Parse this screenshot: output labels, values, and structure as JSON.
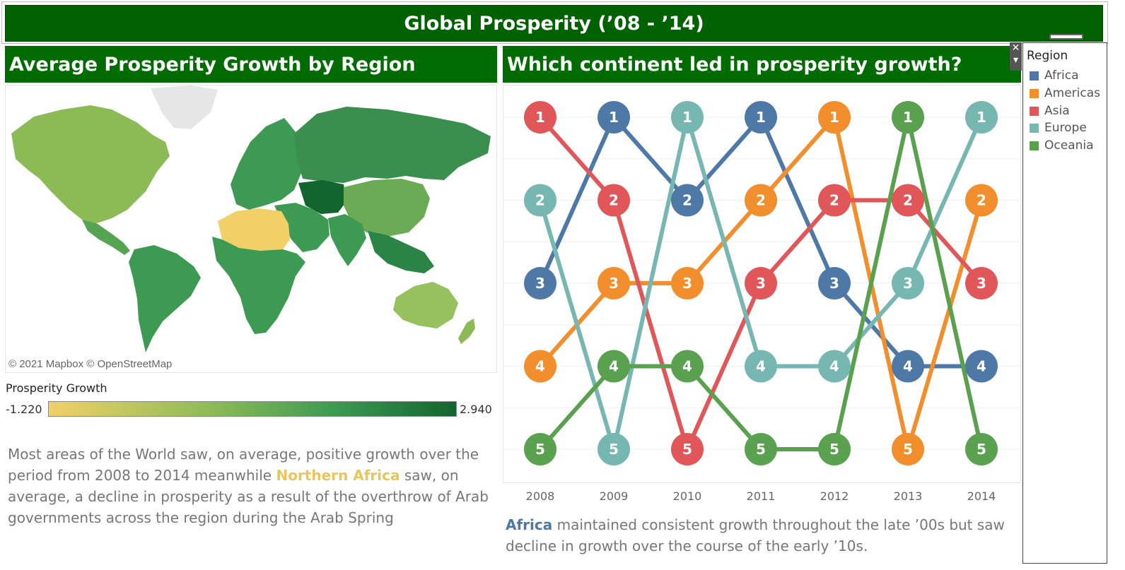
{
  "dashboard_title": "Global Prosperity (’08 - ’14)",
  "map_panel": {
    "title": "Average Prosperity Growth by Region",
    "copyright": "© 2021 Mapbox © OpenStreetMap",
    "legend_title": "Prosperity Growth",
    "legend_min": "-1.220",
    "legend_max": "2.940",
    "gradient_colors": [
      "#f2d068",
      "#8cbb56",
      "#3d9a52",
      "#12652f"
    ],
    "desc_before": "Most areas of the World saw, on average, positive growth over the period from 2008 to 2014 meanwhile ",
    "desc_highlight": "Northern Africa",
    "desc_after": " saw, on average, a decline in prosperity as a result of the overthrow of Arab governments across the region during the Arab Spring"
  },
  "chart_panel": {
    "title": "Which continent led in prosperity growth?",
    "desc_highlight": "Africa",
    "desc_after": " maintained consistent growth throughout the late ’00s but saw decline in growth over the course of the early ’10s."
  },
  "legend": {
    "title": "Region",
    "items": [
      {
        "label": "Africa",
        "color": "#4e79a7"
      },
      {
        "label": "Americas",
        "color": "#f28e2b"
      },
      {
        "label": "Asia",
        "color": "#e15759"
      },
      {
        "label": "Europe",
        "color": "#76b7b2"
      },
      {
        "label": "Oceania",
        "color": "#59a14f"
      }
    ]
  },
  "chart_data": {
    "type": "line",
    "title": "Which continent led in prosperity growth?",
    "x": [
      "2008",
      "2009",
      "2010",
      "2011",
      "2012",
      "2013",
      "2014"
    ],
    "y_axis": "rank",
    "ylim": [
      1,
      5
    ],
    "y_inverted": true,
    "grid": true,
    "legend_position": "right",
    "series": [
      {
        "name": "Africa",
        "color": "#4e79a7",
        "values": [
          3,
          1,
          2,
          1,
          3,
          4,
          4
        ]
      },
      {
        "name": "Americas",
        "color": "#f28e2b",
        "values": [
          4,
          3,
          3,
          2,
          1,
          5,
          2
        ]
      },
      {
        "name": "Asia",
        "color": "#e15759",
        "values": [
          1,
          2,
          5,
          3,
          2,
          2,
          3
        ]
      },
      {
        "name": "Europe",
        "color": "#76b7b2",
        "values": [
          2,
          5,
          1,
          4,
          4,
          3,
          1
        ]
      },
      {
        "name": "Oceania",
        "color": "#59a14f",
        "values": [
          5,
          4,
          4,
          5,
          5,
          1,
          5
        ]
      }
    ]
  },
  "map_data": {
    "region_colors": {
      "north_america": "#8cbb56",
      "greenland": "#e6e6e6",
      "central_america": "#55a452",
      "south_america": "#3d9a52",
      "europe": "#3d9a52",
      "russia": "#3a8f4f",
      "central_asia": "#12652f",
      "north_africa": "#f2d068",
      "sub_saharan_africa": "#3d9a52",
      "middle_east": "#3d9a52",
      "south_asia": "#3d9a52",
      "china": "#6cab55",
      "southeast_asia": "#2a8445",
      "australia": "#97c05e",
      "new_zealand": "#8cbb56"
    }
  }
}
